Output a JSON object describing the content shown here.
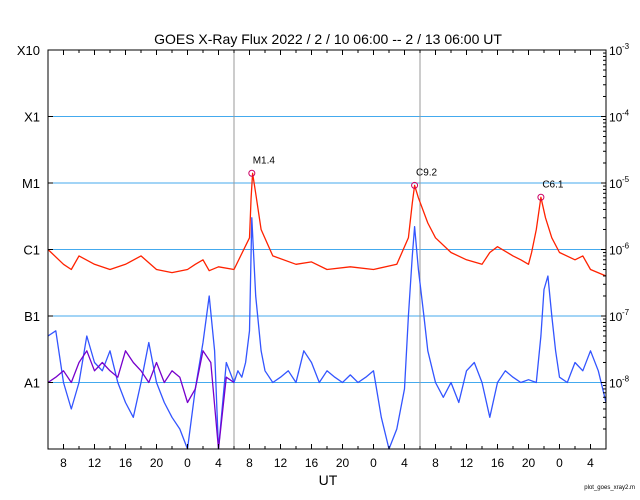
{
  "chart_data": {
    "type": "line",
    "title": "GOES X-Ray Flux   2022  /  2  /  10   06:00 --  2  /  13   06:00   UT",
    "xlabel": "UT",
    "footer": "plot_goes_xray2.m",
    "x_start_hours": 6,
    "x_end_hours": 78,
    "x_tick_values": [
      8,
      12,
      16,
      20,
      24,
      28,
      32,
      36,
      40,
      44,
      48,
      52,
      56,
      60,
      64,
      68,
      72,
      76
    ],
    "x_tick_labels": [
      "8",
      "12",
      "16",
      "20",
      "0",
      "4",
      "8",
      "12",
      "16",
      "20",
      "0",
      "4",
      "8",
      "12",
      "16",
      "20",
      "0",
      "4"
    ],
    "day_boundaries_hours": [
      30,
      54,
      78
    ],
    "y_scale": "log",
    "ylim": [
      1e-09,
      0.001
    ],
    "left_axis": {
      "values": [
        1e-08,
        1e-07,
        1e-06,
        1e-05,
        0.0001,
        0.001
      ],
      "labels": [
        "A1",
        "B1",
        "C1",
        "M1",
        "X1",
        "X10"
      ]
    },
    "right_axis": {
      "values": [
        1e-08,
        1e-07,
        1e-06,
        1e-05,
        0.0001,
        0.001
      ],
      "labels": [
        "10",
        "10",
        "10",
        "10",
        "10",
        "10"
      ],
      "exponents": [
        "-8",
        "-7",
        "-6",
        "-5",
        "-4",
        "-3"
      ]
    },
    "colors": {
      "long": "#ff2200",
      "short_primary": "#3355ff",
      "short_secondary": "#7700cc",
      "grid": "#44aaee",
      "day_line": "#999999",
      "marker": "#cc0066"
    },
    "flares": [
      {
        "label": "M1.4",
        "x": 32.3,
        "value": 1.4e-05
      },
      {
        "label": "C9.2",
        "x": 53.3,
        "value": 9.2e-06
      },
      {
        "label": "C6.1",
        "x": 69.6,
        "value": 6.1e-06
      }
    ],
    "series": [
      {
        "key": "long",
        "x": [
          6,
          8,
          9,
          10,
          12,
          14,
          16,
          18,
          20,
          22,
          24,
          25,
          26,
          26.8,
          28,
          30,
          32,
          32.2,
          32.4,
          32.8,
          33.5,
          35,
          38,
          40,
          42,
          45,
          48,
          51,
          52.5,
          53,
          53.3,
          53.8,
          55,
          56,
          58,
          60,
          62,
          63,
          64,
          66,
          67,
          68,
          68.4,
          69,
          69.6,
          70.2,
          71,
          72,
          74,
          75,
          76,
          78
        ],
        "values": [
          1e-06,
          6e-07,
          5e-07,
          8e-07,
          6e-07,
          5e-07,
          6e-07,
          8e-07,
          5e-07,
          4.5e-07,
          5e-07,
          6e-07,
          7e-07,
          4.8e-07,
          5.5e-07,
          5e-07,
          1.5e-06,
          6e-06,
          1.4e-05,
          7e-06,
          2e-06,
          8e-07,
          6e-07,
          6.5e-07,
          5e-07,
          5.5e-07,
          5e-07,
          6e-07,
          1.5e-06,
          5e-06,
          9.2e-06,
          6e-06,
          2.5e-06,
          1.5e-06,
          9e-07,
          7e-07,
          6e-07,
          9e-07,
          1.1e-06,
          8e-07,
          7e-07,
          6e-07,
          9e-07,
          2e-06,
          6.1e-06,
          3e-06,
          1.5e-06,
          9e-07,
          7e-07,
          8e-07,
          5e-07,
          4e-07
        ]
      },
      {
        "key": "short_primary",
        "x": [
          6,
          7,
          8,
          9,
          10,
          11,
          12,
          13,
          14,
          15,
          16,
          17,
          18,
          19,
          20,
          21,
          22,
          23,
          24,
          25,
          26,
          26.8,
          27.5,
          28,
          29,
          30,
          30.5,
          31,
          31.5,
          32,
          32.3,
          32.8,
          33.5,
          34,
          35,
          36,
          37,
          38,
          39,
          40,
          41,
          42,
          43,
          44,
          45,
          46,
          47,
          48,
          49,
          50,
          51,
          52,
          52.5,
          53,
          53.3,
          53.8,
          54.5,
          55,
          56,
          57,
          58,
          59,
          60,
          61,
          62,
          63,
          64,
          65,
          66,
          67,
          68,
          69,
          69.6,
          70,
          70.5,
          71,
          71.5,
          72,
          73,
          74,
          75,
          76,
          77,
          78
        ],
        "values": [
          5e-08,
          6e-08,
          1e-08,
          4e-09,
          1e-08,
          5e-08,
          2e-08,
          1.5e-08,
          3e-08,
          1e-08,
          5e-09,
          3e-09,
          1e-08,
          4e-08,
          1e-08,
          5e-09,
          3e-09,
          2e-09,
          1e-09,
          8e-09,
          4e-08,
          2e-07,
          3e-08,
          1e-09,
          2e-08,
          1e-08,
          1.5e-08,
          1.2e-08,
          2e-08,
          6e-08,
          3e-06,
          2e-07,
          3e-08,
          1.5e-08,
          1e-08,
          1.2e-08,
          1.5e-08,
          1e-08,
          3e-08,
          2e-08,
          1e-08,
          1.5e-08,
          1.2e-08,
          1e-08,
          1.3e-08,
          1e-08,
          1.2e-08,
          1.5e-08,
          3e-09,
          1e-09,
          2e-09,
          8e-09,
          1e-07,
          8e-07,
          2.2e-06,
          5e-07,
          1e-07,
          3e-08,
          1e-08,
          6e-09,
          1e-08,
          5e-09,
          1.5e-08,
          2e-08,
          1e-08,
          3e-09,
          1e-08,
          1.5e-08,
          1.2e-08,
          1e-08,
          1.1e-08,
          1e-08,
          5e-08,
          2.5e-07,
          4e-07,
          1e-07,
          3e-08,
          1.2e-08,
          1e-08,
          2e-08,
          1.5e-08,
          3e-08,
          1.5e-08,
          5e-09
        ]
      },
      {
        "key": "short_secondary",
        "x": [
          6,
          7,
          8,
          9,
          10,
          11,
          12,
          13,
          14,
          15,
          16,
          17,
          18,
          19,
          20,
          21,
          22,
          23,
          24,
          25,
          26,
          27,
          28,
          29,
          30
        ],
        "values": [
          1e-08,
          1.2e-08,
          1.5e-08,
          1e-08,
          2e-08,
          3e-08,
          1.5e-08,
          2e-08,
          1.5e-08,
          1.2e-08,
          3e-08,
          2e-08,
          1.5e-08,
          1e-08,
          2e-08,
          1e-08,
          1.5e-08,
          1.2e-08,
          5e-09,
          8e-09,
          3e-08,
          2e-08,
          1e-09,
          1.2e-08,
          1e-08
        ]
      }
    ]
  }
}
